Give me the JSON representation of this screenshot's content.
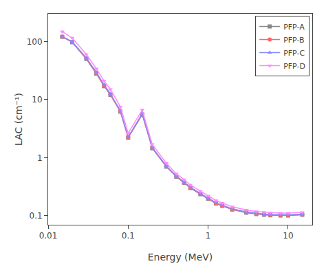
{
  "chart_data": {
    "type": "line",
    "xlabel": "Energy (MeV)",
    "ylabel": "LAC (cm⁻¹)",
    "log": true,
    "grid": false,
    "legend": "upper right",
    "xlim": [
      0.01,
      20
    ],
    "ylim": [
      0.07,
      300
    ],
    "xticks": [
      0.01,
      0.1,
      1,
      10
    ],
    "yticks": [
      0.1,
      1,
      10,
      100
    ],
    "x": [
      0.015,
      0.02,
      0.03,
      0.04,
      0.05,
      0.06,
      0.08,
      0.1,
      0.15,
      0.2,
      0.3,
      0.4,
      0.5,
      0.6,
      0.8,
      1.0,
      1.25,
      1.5,
      2.0,
      3.0,
      4.0,
      5.0,
      6.0,
      8.0,
      10.0,
      15.0
    ],
    "series": [
      {
        "name": "PFP-A",
        "color": "#888888",
        "marker": "square",
        "values": [
          120,
          97,
          50,
          28,
          17,
          12,
          6.2,
          2.2,
          5.5,
          1.45,
          0.7,
          0.47,
          0.37,
          0.3,
          0.235,
          0.196,
          0.163,
          0.148,
          0.128,
          0.113,
          0.107,
          0.104,
          0.102,
          0.101,
          0.101,
          0.104
        ]
      },
      {
        "name": "PFP-B",
        "color": "#ff6666",
        "marker": "circle",
        "values": [
          121,
          98,
          51,
          29,
          17.5,
          12.3,
          6.3,
          2.25,
          5.65,
          1.48,
          0.71,
          0.48,
          0.375,
          0.305,
          0.238,
          0.198,
          0.165,
          0.15,
          0.13,
          0.115,
          0.108,
          0.105,
          0.103,
          0.102,
          0.102,
          0.105
        ]
      },
      {
        "name": "PFP-C",
        "color": "#8888ff",
        "marker": "triangle-up",
        "values": [
          122,
          99,
          52,
          29.5,
          18,
          12.6,
          6.4,
          2.28,
          5.72,
          1.5,
          0.72,
          0.485,
          0.38,
          0.31,
          0.242,
          0.202,
          0.168,
          0.152,
          0.132,
          0.117,
          0.11,
          0.107,
          0.105,
          0.104,
          0.104,
          0.107
        ]
      },
      {
        "name": "PFP-D",
        "color": "#ff88ff",
        "marker": "triangle-down",
        "values": [
          148,
          115,
          60,
          34,
          21,
          15,
          7.5,
          2.65,
          6.6,
          1.7,
          0.8,
          0.53,
          0.42,
          0.34,
          0.265,
          0.22,
          0.183,
          0.165,
          0.143,
          0.126,
          0.118,
          0.115,
          0.113,
          0.111,
          0.111,
          0.114
        ]
      }
    ]
  }
}
